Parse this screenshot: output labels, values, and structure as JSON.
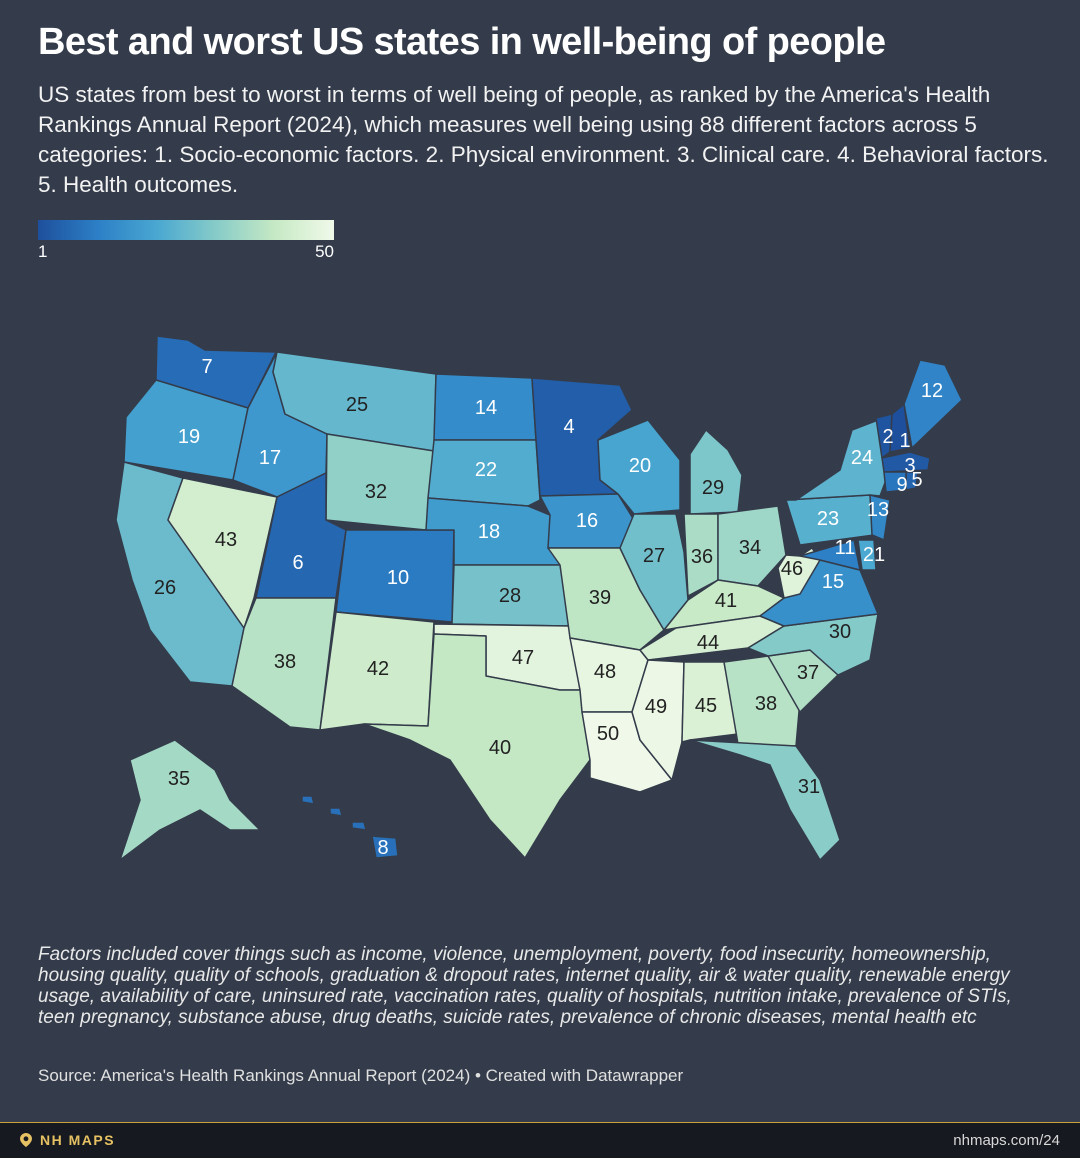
{
  "title": "Best and worst US states in well-being of people",
  "subtitle": "US states from best to worst in terms of well being of people, as ranked by the America's Health Rankings Annual Report (2024), which measures well being using 88 different factors across 5 categories: 1. Socio-economic factors. 2. Physical environment. 3. Clinical care. 4. Behavioral factors. 5. Health outcomes.",
  "legend": {
    "min": "1",
    "max": "50",
    "min_color": "#1e4f9c",
    "max_color": "#f0f9e9"
  },
  "map_data": {
    "type": "choropleth",
    "scale": [
      1,
      50
    ],
    "states": [
      {
        "code": "WA",
        "rank": 7
      },
      {
        "code": "OR",
        "rank": 19
      },
      {
        "code": "CA",
        "rank": 26
      },
      {
        "code": "NV",
        "rank": 43
      },
      {
        "code": "ID",
        "rank": 17
      },
      {
        "code": "MT",
        "rank": 25
      },
      {
        "code": "WY",
        "rank": 32
      },
      {
        "code": "UT",
        "rank": 6
      },
      {
        "code": "AZ",
        "rank": 38
      },
      {
        "code": "CO",
        "rank": 10
      },
      {
        "code": "NM",
        "rank": 42
      },
      {
        "code": "ND",
        "rank": 14
      },
      {
        "code": "SD",
        "rank": 22
      },
      {
        "code": "NE",
        "rank": 18
      },
      {
        "code": "KS",
        "rank": 28
      },
      {
        "code": "OK",
        "rank": 47
      },
      {
        "code": "TX",
        "rank": 40
      },
      {
        "code": "MN",
        "rank": 4
      },
      {
        "code": "IA",
        "rank": 16
      },
      {
        "code": "MO",
        "rank": 39
      },
      {
        "code": "AR",
        "rank": 48
      },
      {
        "code": "LA",
        "rank": 50
      },
      {
        "code": "WI",
        "rank": 20
      },
      {
        "code": "IL",
        "rank": 27
      },
      {
        "code": "MI",
        "rank": 29
      },
      {
        "code": "IN",
        "rank": 36
      },
      {
        "code": "OH",
        "rank": 34
      },
      {
        "code": "KY",
        "rank": 41
      },
      {
        "code": "TN",
        "rank": 44
      },
      {
        "code": "MS",
        "rank": 49
      },
      {
        "code": "AL",
        "rank": 45
      },
      {
        "code": "GA",
        "rank": 38
      },
      {
        "code": "FL",
        "rank": 31
      },
      {
        "code": "SC",
        "rank": 37
      },
      {
        "code": "NC",
        "rank": 30
      },
      {
        "code": "VA",
        "rank": 15
      },
      {
        "code": "WV",
        "rank": 46
      },
      {
        "code": "PA",
        "rank": 23
      },
      {
        "code": "NY",
        "rank": 24
      },
      {
        "code": "VT",
        "rank": 2
      },
      {
        "code": "NH",
        "rank": 1
      },
      {
        "code": "ME",
        "rank": 12
      },
      {
        "code": "MA",
        "rank": 3
      },
      {
        "code": "RI",
        "rank": 5
      },
      {
        "code": "CT",
        "rank": 9
      },
      {
        "code": "NJ",
        "rank": 13
      },
      {
        "code": "DE",
        "rank": 21
      },
      {
        "code": "MD",
        "rank": 11
      },
      {
        "code": "AK",
        "rank": 35
      },
      {
        "code": "HI",
        "rank": 8
      }
    ]
  },
  "footnote": "Factors included cover things such as income, violence, unemployment, poverty, food insecurity, homeownership, housing quality, quality of schools, graduation & dropout rates, internet quality, air & water quality, renewable energy usage, availability of care, uninsured rate, vaccination rates, quality of hospitals, nutrition intake, prevalence of STIs, teen pregnancy, substance abuse, drug deaths, suicide rates, prevalence of chronic diseases, mental health etc",
  "source": "Source: America's Health Rankings Annual Report (2024) • Created with Datawrapper",
  "footer": {
    "brand": "NH MAPS",
    "url": "nhmaps.com/24",
    "brand_color": "#e6c163"
  }
}
